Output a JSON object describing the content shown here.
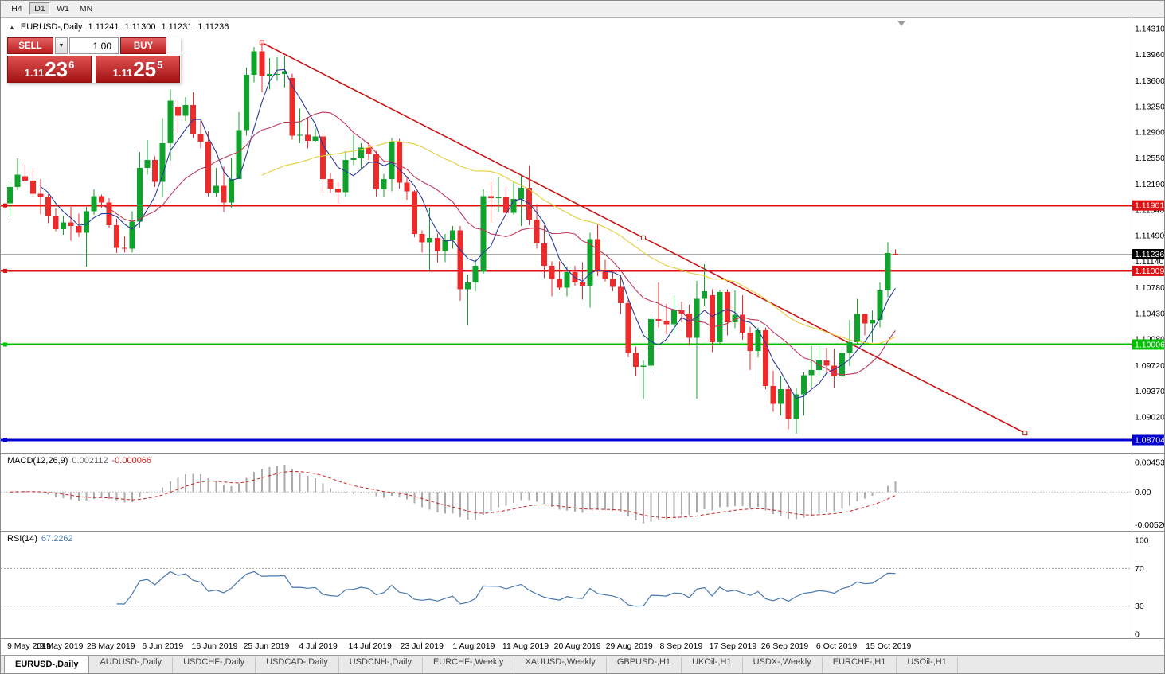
{
  "toolbar": {
    "timeframes": [
      "H4",
      "D1",
      "W1",
      "MN"
    ],
    "active_timeframe": "D1"
  },
  "chart": {
    "symbol_label": "EURUSD-,Daily",
    "ohlc": {
      "open": "1.11241",
      "high": "1.11300",
      "low": "1.11231",
      "close": "1.11236"
    },
    "icons": {
      "collapse_panel": "▲",
      "volume_dropdown": "▼"
    },
    "trade_panel": {
      "sell_label": "SELL",
      "buy_label": "BUY",
      "volume": "1.00",
      "sell_price": {
        "big": "1.11",
        "pips": "23",
        "pt": "6"
      },
      "buy_price": {
        "big": "1.11",
        "pips": "25",
        "pt": "5"
      }
    },
    "price_axis_labels": [
      "1.14310",
      "1.13960",
      "1.13600",
      "1.13250",
      "1.12900",
      "1.12550",
      "1.12190",
      "1.11840",
      "1.11490",
      "1.11140",
      "1.10780",
      "1.10430",
      "1.10080",
      "1.09720",
      "1.09370",
      "1.09020"
    ],
    "scale_anchors": {
      "price_top": 1.1431,
      "price_bottom": 1.08704
    },
    "bid_price": 1.11236,
    "bid_badge": "1.11236",
    "hlines": [
      {
        "price": 1.11901,
        "label": "1.11901",
        "color": "#DD1111"
      },
      {
        "price": 1.11009,
        "label": "1.11009",
        "color": "#DD1111"
      },
      {
        "price": 1.10006,
        "label": "1.10006",
        "color": "#00C000"
      },
      {
        "price": 1.08704,
        "label": "1.08704",
        "color": "#0000D0"
      }
    ],
    "trendline": {
      "i1": 33,
      "p1": 1.1412,
      "i2": 133,
      "p2": 1.088,
      "color": "#C81414"
    },
    "moving_averages": [
      {
        "period": 5,
        "color": "#2B3A9B"
      },
      {
        "period": 13,
        "color": "#BF3A5A"
      },
      {
        "period": 34,
        "color": "#E2CF3C"
      }
    ],
    "colors": {
      "up": "#0FA32B",
      "down": "#EE2B2B",
      "bid_line": "#ABABAB",
      "bid_badge_bg": "#000000"
    },
    "candles": [
      [
        1.1193,
        1.1224,
        1.1174,
        1.1215
      ],
      [
        1.1215,
        1.1254,
        1.1211,
        1.1232
      ],
      [
        1.123,
        1.1246,
        1.122,
        1.1224
      ],
      [
        1.1224,
        1.1241,
        1.1202,
        1.1206
      ],
      [
        1.1206,
        1.1226,
        1.1178,
        1.1202
      ],
      [
        1.1202,
        1.1206,
        1.1166,
        1.1175
      ],
      [
        1.1175,
        1.1186,
        1.1155,
        1.1158
      ],
      [
        1.1158,
        1.1176,
        1.115,
        1.1167
      ],
      [
        1.1167,
        1.1188,
        1.1142,
        1.1162
      ],
      [
        1.1162,
        1.1179,
        1.1147,
        1.1153
      ],
      [
        1.1153,
        1.1188,
        1.1107,
        1.1182
      ],
      [
        1.1182,
        1.1212,
        1.1177,
        1.1203
      ],
      [
        1.1203,
        1.1205,
        1.1187,
        1.1194
      ],
      [
        1.1194,
        1.12,
        1.1159,
        1.1163
      ],
      [
        1.1163,
        1.1172,
        1.1125,
        1.1132
      ],
      [
        1.1132,
        1.1148,
        1.1126,
        1.1131
      ],
      [
        1.1131,
        1.1182,
        1.1126,
        1.1168
      ],
      [
        1.1168,
        1.1263,
        1.116,
        1.1241
      ],
      [
        1.1241,
        1.1279,
        1.1232,
        1.1252
      ],
      [
        1.1252,
        1.1257,
        1.1215,
        1.1222
      ],
      [
        1.1222,
        1.1309,
        1.1201,
        1.1275
      ],
      [
        1.1275,
        1.1348,
        1.1251,
        1.1333
      ],
      [
        1.1325,
        1.1333,
        1.1289,
        1.1312
      ],
      [
        1.1312,
        1.1338,
        1.1305,
        1.1327
      ],
      [
        1.1327,
        1.1344,
        1.1282,
        1.1288
      ],
      [
        1.1288,
        1.1306,
        1.1268,
        1.1277
      ],
      [
        1.1277,
        1.1291,
        1.1202,
        1.1207
      ],
      [
        1.1207,
        1.1241,
        1.1202,
        1.1217
      ],
      [
        1.1217,
        1.1243,
        1.1181,
        1.1194
      ],
      [
        1.1194,
        1.1255,
        1.1187,
        1.1226
      ],
      [
        1.1226,
        1.1317,
        1.1226,
        1.1293
      ],
      [
        1.1293,
        1.1378,
        1.1285,
        1.1368
      ],
      [
        1.1368,
        1.1406,
        1.1358,
        1.14
      ],
      [
        1.14,
        1.1412,
        1.1344,
        1.1366
      ],
      [
        1.1366,
        1.1391,
        1.1348,
        1.1369
      ],
      [
        1.1369,
        1.1392,
        1.136,
        1.1369
      ],
      [
        1.1369,
        1.1394,
        1.1351,
        1.1373
      ],
      [
        1.1364,
        1.137,
        1.128,
        1.1285
      ],
      [
        1.1285,
        1.1322,
        1.1275,
        1.1286
      ],
      [
        1.1286,
        1.131,
        1.1268,
        1.1278
      ],
      [
        1.1278,
        1.1295,
        1.1277,
        1.1284
      ],
      [
        1.1284,
        1.1289,
        1.1207,
        1.1226
      ],
      [
        1.1226,
        1.1234,
        1.1207,
        1.1213
      ],
      [
        1.1213,
        1.1222,
        1.1193,
        1.1208
      ],
      [
        1.1208,
        1.1264,
        1.1202,
        1.1252
      ],
      [
        1.1252,
        1.1286,
        1.1245,
        1.1254
      ],
      [
        1.1254,
        1.1275,
        1.1239,
        1.1269
      ],
      [
        1.1269,
        1.1276,
        1.1252,
        1.126
      ],
      [
        1.126,
        1.1264,
        1.1202,
        1.1212
      ],
      [
        1.1212,
        1.1233,
        1.1201,
        1.1226
      ],
      [
        1.1226,
        1.1282,
        1.1209,
        1.1277
      ],
      [
        1.1277,
        1.1281,
        1.1213,
        1.1221
      ],
      [
        1.1221,
        1.123,
        1.1198,
        1.1209
      ],
      [
        1.1209,
        1.1211,
        1.1147,
        1.1151
      ],
      [
        1.1151,
        1.1156,
        1.1126,
        1.114
      ],
      [
        1.114,
        1.1187,
        1.1101,
        1.1146
      ],
      [
        1.1146,
        1.1152,
        1.1112,
        1.1128
      ],
      [
        1.1128,
        1.1151,
        1.1113,
        1.1143
      ],
      [
        1.1143,
        1.1162,
        1.1131,
        1.1156
      ],
      [
        1.1156,
        1.1162,
        1.106,
        1.1076
      ],
      [
        1.1076,
        1.1096,
        1.1027,
        1.1085
      ],
      [
        1.1085,
        1.1116,
        1.1073,
        1.1108
      ],
      [
        1.11,
        1.1212,
        1.1097,
        1.1203
      ],
      [
        1.1203,
        1.1222,
        1.1167,
        1.12
      ],
      [
        1.12,
        1.1228,
        1.1181,
        1.1201
      ],
      [
        1.1201,
        1.1216,
        1.1174,
        1.118
      ],
      [
        1.118,
        1.1223,
        1.1177,
        1.1199
      ],
      [
        1.1199,
        1.1231,
        1.1162,
        1.1214
      ],
      [
        1.1214,
        1.1245,
        1.1163,
        1.1171
      ],
      [
        1.1171,
        1.1192,
        1.1131,
        1.1138
      ],
      [
        1.1138,
        1.1163,
        1.1091,
        1.1108
      ],
      [
        1.1108,
        1.1114,
        1.1066,
        1.109
      ],
      [
        1.109,
        1.1114,
        1.1075,
        1.1078
      ],
      [
        1.1078,
        1.1107,
        1.1066,
        1.1099
      ],
      [
        1.1099,
        1.1108,
        1.1081,
        1.1085
      ],
      [
        1.1085,
        1.1113,
        1.1062,
        1.1081
      ],
      [
        1.1081,
        1.1153,
        1.1051,
        1.1144
      ],
      [
        1.1144,
        1.1164,
        1.1094,
        1.1101
      ],
      [
        1.1101,
        1.1116,
        1.1086,
        1.109
      ],
      [
        1.109,
        1.1098,
        1.1073,
        1.1079
      ],
      [
        1.1079,
        1.1094,
        1.1042,
        1.1057
      ],
      [
        1.1057,
        1.1061,
        1.0983,
        1.0989
      ],
      [
        1.0989,
        1.0998,
        1.0958,
        1.097
      ],
      [
        1.097,
        1.0979,
        1.0926,
        1.0972
      ],
      [
        1.0972,
        1.1038,
        1.0966,
        1.1035
      ],
      [
        1.1035,
        1.1085,
        1.1024,
        1.1033
      ],
      [
        1.1033,
        1.1056,
        1.1015,
        1.1028
      ],
      [
        1.1028,
        1.1067,
        1.1015,
        1.1047
      ],
      [
        1.1047,
        1.1059,
        1.1031,
        1.1043
      ],
      [
        1.1043,
        1.1055,
        1.0999,
        1.101
      ],
      [
        1.101,
        1.1087,
        1.0927,
        1.1063
      ],
      [
        1.1063,
        1.111,
        1.1053,
        1.1073
      ],
      [
        1.1068,
        1.1076,
        1.099,
        1.1004
      ],
      [
        1.1004,
        1.1075,
        1.1001,
        1.1072
      ],
      [
        1.1072,
        1.1076,
        1.1013,
        1.1031
      ],
      [
        1.1031,
        1.1074,
        1.1023,
        1.1041
      ],
      [
        1.1041,
        1.1068,
        1.1007,
        1.1017
      ],
      [
        1.1017,
        1.1025,
        1.0966,
        1.0992
      ],
      [
        1.0992,
        1.1024,
        1.0983,
        1.102
      ],
      [
        1.102,
        1.1024,
        1.094,
        1.0944
      ],
      [
        1.0944,
        1.0965,
        1.0909,
        1.092
      ],
      [
        1.092,
        1.0958,
        1.0904,
        1.094
      ],
      [
        1.094,
        1.0946,
        1.0885,
        1.0899
      ],
      [
        1.0899,
        1.0941,
        1.0879,
        1.0933
      ],
      [
        1.0933,
        1.0963,
        1.0904,
        1.0959
      ],
      [
        1.0959,
        1.0999,
        1.0941,
        1.0966
      ],
      [
        1.0966,
        1.0999,
        1.0957,
        1.0979
      ],
      [
        1.0979,
        1.0996,
        1.0962,
        1.0972
      ],
      [
        1.0972,
        1.0995,
        1.0941,
        1.0957
      ],
      [
        1.0957,
        1.0994,
        1.0955,
        1.0989
      ],
      [
        1.0989,
        1.1034,
        1.0971,
        1.1004
      ],
      [
        1.1004,
        1.1063,
        1.1002,
        1.1042
      ],
      [
        1.1042,
        1.1043,
        1.1013,
        1.1029
      ],
      [
        1.1029,
        1.1047,
        1.1003,
        1.1034
      ],
      [
        1.1034,
        1.1085,
        1.1024,
        1.1074
      ],
      [
        1.1074,
        1.114,
        1.1065,
        1.1125
      ],
      [
        1.11241,
        1.113,
        1.11231,
        1.11236
      ]
    ]
  },
  "macd": {
    "name": "MACD(12,26,9)",
    "value": "0.002112",
    "signal_value": "-0.000066",
    "axis_labels": [
      "0.004536",
      "0.00",
      "-0.005205"
    ],
    "fast": 12,
    "slow": 26,
    "signal": 9,
    "range_max": 0.004536,
    "range_min": -0.005205,
    "colors": {
      "histogram": "#ABABAB",
      "signal": "#CC2222"
    }
  },
  "rsi": {
    "name": "RSI(14)",
    "value": "67.2262",
    "axis_labels": [
      "100",
      "70",
      "30",
      "0"
    ],
    "period": 14,
    "levels": [
      70,
      30
    ],
    "color": "#4878B0"
  },
  "date_axis": [
    "9 May 2019",
    "19 May 2019",
    "28 May 2019",
    "6 Jun 2019",
    "16 Jun 2019",
    "25 Jun 2019",
    "4 Jul 2019",
    "14 Jul 2019",
    "23 Jul 2019",
    "1 Aug 2019",
    "11 Aug 2019",
    "20 Aug 2019",
    "29 Aug 2019",
    "8 Sep 2019",
    "17 Sep 2019",
    "26 Sep 2019",
    "6 Oct 2019",
    "15 Oct 2019"
  ],
  "tabs": [
    "EURUSD-,Daily",
    "AUDUSD-,Daily",
    "USDCHF-,Daily",
    "USDCAD-,Daily",
    "USDCNH-,Daily",
    "EURCHF-,Weekly",
    "XAUUSD-,Weekly",
    "GBPUSD-,H1",
    "UKOil-,H1",
    "USDX-,Weekly",
    "EURCHF-,H1",
    "USOil-,H1"
  ],
  "active_tab": "EURUSD-,Daily"
}
